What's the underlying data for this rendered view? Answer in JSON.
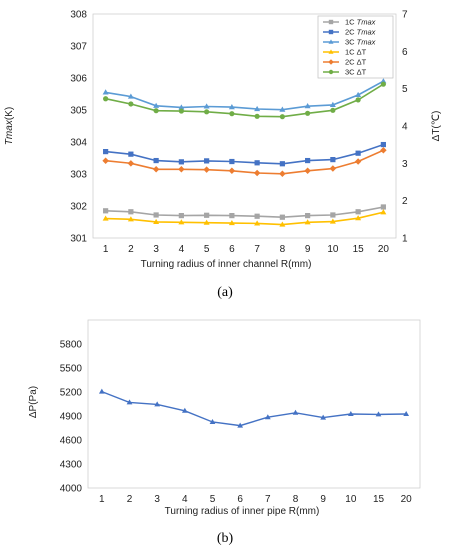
{
  "chart_data": [
    {
      "type": "line",
      "panel_label": "(a)",
      "categories": [
        "1",
        "2",
        "3",
        "4",
        "5",
        "6",
        "7",
        "8",
        "9",
        "10",
        "15",
        "20"
      ],
      "xlabel": "Turning radius of inner channel R(mm)",
      "ylabel_left": {
        "italic": "Tmax",
        "rest": "(K)"
      },
      "ylabel_right": "ΔT(℃)",
      "ylim_left": [
        301,
        308
      ],
      "ylim_right": [
        1,
        7
      ],
      "yticks_left": [
        "301",
        "302",
        "303",
        "304",
        "305",
        "306",
        "307",
        "308"
      ],
      "yticks_right": [
        "1",
        "2",
        "3",
        "4",
        "5",
        "6",
        "7"
      ],
      "legend_position": "top-right",
      "series": [
        {
          "name": "1C ",
          "name_italic": "Tmax",
          "axis": "left",
          "marker": "square",
          "color": "#a5a5a5",
          "values": [
            301.85,
            301.82,
            301.72,
            301.7,
            301.71,
            301.7,
            301.68,
            301.65,
            301.7,
            301.72,
            301.82,
            301.97
          ]
        },
        {
          "name": "2C ",
          "name_italic": "Tmax",
          "axis": "left",
          "marker": "square",
          "color": "#4472c4",
          "values": [
            303.7,
            303.62,
            303.42,
            303.38,
            303.41,
            303.39,
            303.35,
            303.32,
            303.42,
            303.45,
            303.65,
            303.92
          ]
        },
        {
          "name": "3C ",
          "name_italic": "Tmax",
          "axis": "left",
          "marker": "triangle",
          "color": "#5b9bd5",
          "values": [
            305.55,
            305.42,
            305.13,
            305.08,
            305.11,
            305.09,
            305.03,
            305.01,
            305.12,
            305.16,
            305.47,
            305.9
          ]
        },
        {
          "name": "1C ΔT",
          "name_italic": "",
          "axis": "right",
          "marker": "triangle",
          "color": "#ffc000",
          "values": [
            1.52,
            1.5,
            1.43,
            1.42,
            1.41,
            1.4,
            1.39,
            1.36,
            1.42,
            1.44,
            1.53,
            1.69
          ]
        },
        {
          "name": "2C ΔT",
          "name_italic": "",
          "axis": "right",
          "marker": "diamond",
          "color": "#ed7d31",
          "values": [
            3.07,
            3.0,
            2.84,
            2.84,
            2.83,
            2.8,
            2.74,
            2.72,
            2.8,
            2.86,
            3.05,
            3.35
          ]
        },
        {
          "name": "3C ΔT",
          "name_italic": "",
          "axis": "right",
          "marker": "circle",
          "color": "#70ad47",
          "values": [
            4.73,
            4.59,
            4.41,
            4.4,
            4.38,
            4.33,
            4.26,
            4.25,
            4.34,
            4.42,
            4.7,
            5.12
          ]
        }
      ]
    },
    {
      "type": "line",
      "panel_label": "(b)",
      "categories": [
        "1",
        "2",
        "3",
        "4",
        "5",
        "6",
        "7",
        "8",
        "9",
        "10",
        "15",
        "20"
      ],
      "xlabel": "Turning radius of inner pipe R(mm)",
      "ylabel": "ΔP(Pa)",
      "ylim": [
        4000,
        6100
      ],
      "yticks": [
        "4000",
        "4300",
        "4600",
        "4900",
        "5200",
        "5500",
        "5800"
      ],
      "series": [
        {
          "name": "",
          "marker": "triangle",
          "color": "#4472c4",
          "values": [
            5205,
            5070,
            5045,
            4965,
            4825,
            4780,
            4885,
            4940,
            4880,
            4925,
            4920,
            4925
          ]
        }
      ]
    }
  ]
}
